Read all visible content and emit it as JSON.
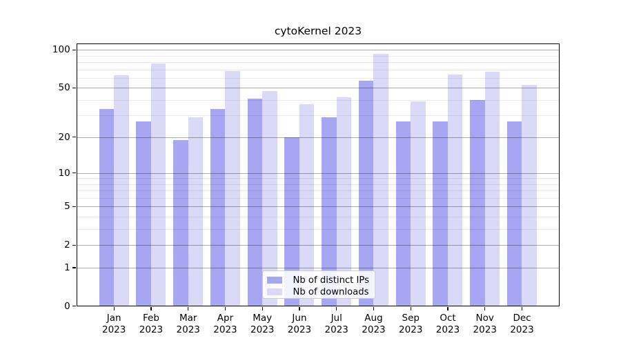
{
  "chart_data": {
    "type": "bar",
    "title": "cytoKernel 2023",
    "categories": [
      "Jan",
      "Feb",
      "Mar",
      "Apr",
      "May",
      "Jun",
      "Jul",
      "Aug",
      "Sep",
      "Oct",
      "Nov",
      "Dec"
    ],
    "x_year": "2023",
    "series": [
      {
        "name": "Nb of distinct IPs",
        "color": "#a6a6f2",
        "values": [
          34,
          27,
          19,
          34,
          41,
          20,
          29,
          57,
          27,
          27,
          40,
          27
        ]
      },
      {
        "name": "Nb of downloads",
        "color": "#dadaf8",
        "values": [
          63,
          78,
          29,
          68,
          47,
          37,
          42,
          93,
          39,
          64,
          67,
          53
        ]
      }
    ],
    "yscale": "log1p",
    "ylim": [
      0,
      113
    ],
    "y_major_ticks": [
      100,
      50,
      20,
      10,
      5,
      2,
      1,
      0
    ],
    "y_minor_ticks": [
      3,
      4,
      6,
      7,
      8,
      9,
      30,
      40,
      60,
      70,
      80,
      90
    ],
    "grid": true,
    "legend_position": "lower center",
    "xlabel": "",
    "ylabel": ""
  }
}
